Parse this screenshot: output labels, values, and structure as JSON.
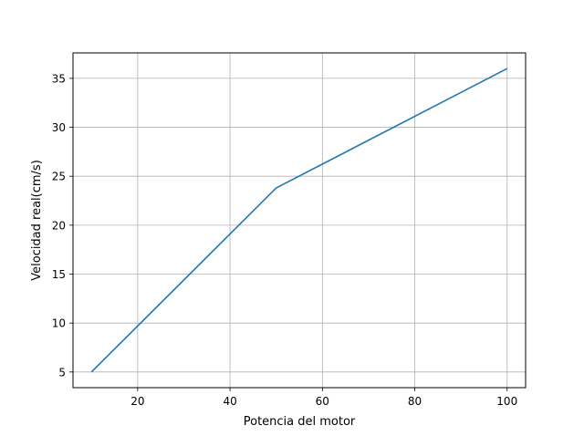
{
  "chart_data": {
    "type": "line",
    "title": "",
    "xlabel": "Potencia del motor",
    "ylabel": "Velocidad real(cm/s)",
    "xlim": [
      6,
      104
    ],
    "ylim": [
      3.4,
      37.6
    ],
    "xticks": [
      20,
      40,
      60,
      80,
      100
    ],
    "yticks": [
      5,
      10,
      15,
      20,
      25,
      30,
      35
    ],
    "grid": true,
    "legend": "none",
    "series": [
      {
        "color": "#1f77b4",
        "x": [
          10,
          50,
          100
        ],
        "y": [
          5.0,
          23.8,
          36.0
        ]
      }
    ]
  }
}
